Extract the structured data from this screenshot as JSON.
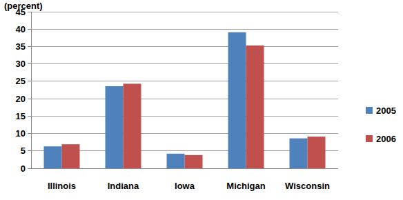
{
  "chart_data": {
    "type": "bar",
    "y_label": "(percent)",
    "categories": [
      "Illinois",
      "Indiana",
      "Iowa",
      "Michigan",
      "Wisconsin"
    ],
    "series": [
      {
        "name": "2005",
        "color": "#4f81bd",
        "values": [
          6.3,
          23.6,
          4.2,
          39.1,
          8.6
        ]
      },
      {
        "name": "2006",
        "color": "#c0504d",
        "values": [
          6.9,
          24.3,
          3.8,
          35.3,
          9.1
        ]
      }
    ],
    "ylim": [
      0,
      45
    ],
    "yticks": [
      0,
      5,
      10,
      15,
      20,
      25,
      30,
      35,
      40,
      45
    ],
    "grid": true,
    "legend": "right"
  }
}
